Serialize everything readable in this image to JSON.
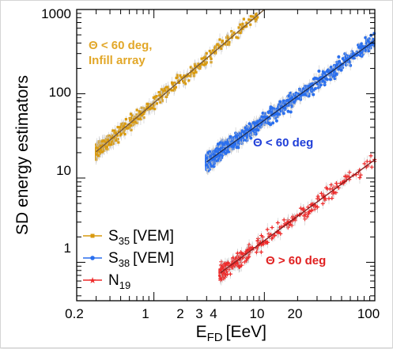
{
  "chart_data": {
    "type": "scatter",
    "xlabel": "E",
    "xlabel_sub": "FD",
    "xlabel_unit": "[EeV]",
    "ylabel": "SD energy estimators",
    "x_scale": "log",
    "y_scale": "log",
    "xlim": [
      0.2,
      100
    ],
    "ylim": [
      0.35,
      1000
    ],
    "x_tick_labels": [
      "0.2",
      "1",
      "2",
      "3",
      "4",
      "10",
      "20",
      "100"
    ],
    "y_tick_labels": [
      "1",
      "10",
      "100",
      "1000"
    ],
    "legend_position": "bottom-left",
    "series": [
      {
        "name": "S",
        "name_sub": "35",
        "name_unit": "[VEM]",
        "marker": "square",
        "color": "#d99a0e",
        "fit_color": "#7a5a36",
        "x_range": [
          0.3,
          10
        ],
        "fit_line": [
          [
            0.3,
            20.5
          ],
          [
            10,
            1000
          ]
        ],
        "annotation": [
          "Θ < 60 deg,",
          "Infill array"
        ]
      },
      {
        "name": "S",
        "name_sub": "38",
        "name_unit": "[VEM]",
        "marker": "circle",
        "color": "#2a6fee",
        "fit_color": "#1a2f5e",
        "x_range": [
          3,
          100
        ],
        "fit_line": [
          [
            3,
            15.5
          ],
          [
            100,
            430
          ]
        ],
        "annotation": [
          "Θ < 60 deg"
        ]
      },
      {
        "name": "N",
        "name_sub": "19",
        "name_unit": "",
        "marker": "star",
        "color": "#ee2b2b",
        "fit_color": "#8a1e1e",
        "x_range": [
          4,
          100
        ],
        "fit_line": [
          [
            4,
            0.75
          ],
          [
            100,
            16.5
          ]
        ],
        "annotation": [
          "Θ > 60 deg"
        ]
      }
    ]
  }
}
